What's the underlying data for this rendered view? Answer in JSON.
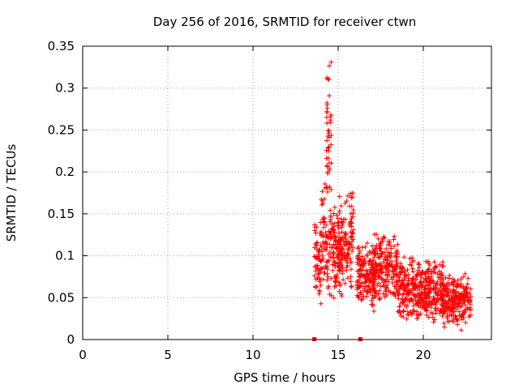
{
  "chart_data": {
    "type": "scatter",
    "title": "Day 256 of 2016, SRMTID for receiver ctwn",
    "xlabel": "GPS time / hours",
    "ylabel": "SRMTID / TECUs",
    "xlim": [
      0,
      24
    ],
    "ylim": [
      0,
      0.35
    ],
    "xticks": [
      0,
      5,
      10,
      15,
      20
    ],
    "xtick_labels": [
      "0",
      "5",
      "10",
      "15",
      "20"
    ],
    "yticks": [
      0,
      0.05,
      0.1,
      0.15,
      0.2,
      0.25,
      0.3,
      0.35
    ],
    "ytick_labels": [
      "0",
      "0.05",
      "0.1",
      "0.15",
      "0.2",
      "0.25",
      "0.3",
      "0.35"
    ],
    "grid": true,
    "marker": "plus",
    "series_color": "#ff0000",
    "zero_markers": [
      13.6,
      16.3
    ],
    "clusters": [
      {
        "x": [
          13.6,
          14.0
        ],
        "y": [
          0.04,
          0.15
        ]
      },
      {
        "x": [
          14.0,
          14.4
        ],
        "y": [
          0.05,
          0.2
        ]
      },
      {
        "x": [
          14.3,
          14.6
        ],
        "y": [
          0.15,
          0.34
        ]
      },
      {
        "x": [
          14.4,
          15.2
        ],
        "y": [
          0.03,
          0.17
        ]
      },
      {
        "x": [
          15.0,
          15.9
        ],
        "y": [
          0.05,
          0.18
        ]
      },
      {
        "x": [
          16.1,
          17.2
        ],
        "y": [
          0.03,
          0.12
        ]
      },
      {
        "x": [
          17.0,
          18.5
        ],
        "y": [
          0.04,
          0.13
        ]
      },
      {
        "x": [
          18.5,
          19.8
        ],
        "y": [
          0.02,
          0.1
        ]
      },
      {
        "x": [
          19.8,
          21.2
        ],
        "y": [
          0.02,
          0.1
        ]
      },
      {
        "x": [
          21.0,
          22.8
        ],
        "y": [
          0.01,
          0.08
        ]
      }
    ]
  }
}
